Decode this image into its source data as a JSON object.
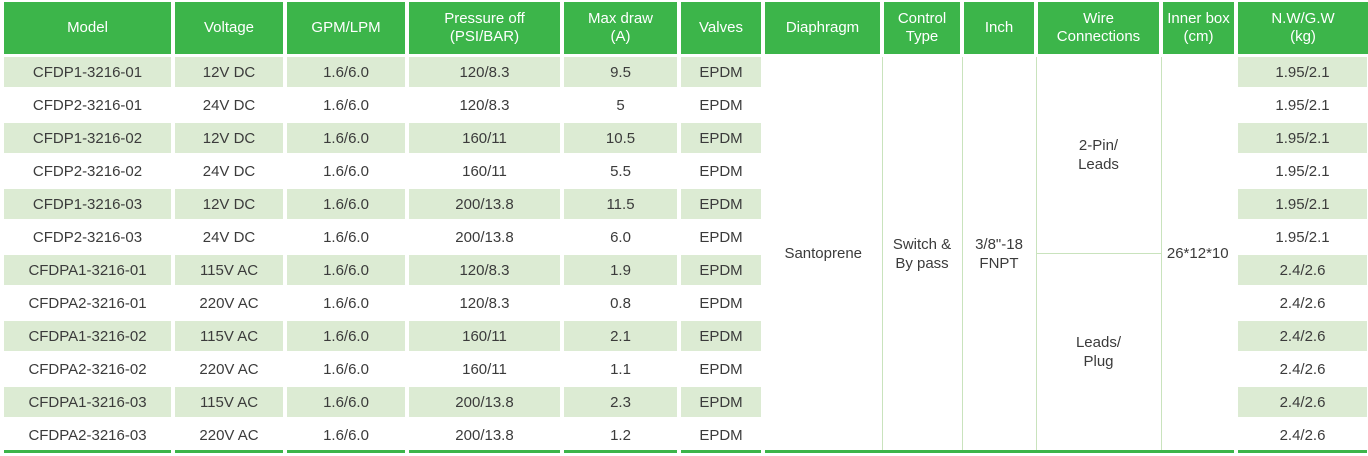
{
  "table": {
    "headers": [
      "Model",
      "Voltage",
      "GPM/LPM",
      "Pressure off\n(PSI/BAR)",
      "Max draw\n(A)",
      "Valves",
      "Diaphragm",
      "Control\nType",
      "Inch",
      "Wire\nConnections",
      "Inner box\n(cm)",
      "N.W/G.W\n(kg)"
    ],
    "rows": [
      [
        "CFDP1-3216-01",
        "12V DC",
        "1.6/6.0",
        "120/8.3",
        "9.5",
        "EPDM",
        "1.95/2.1"
      ],
      [
        "CFDP2-3216-01",
        "24V DC",
        "1.6/6.0",
        "120/8.3",
        "5",
        "EPDM",
        "1.95/2.1"
      ],
      [
        "CFDP1-3216-02",
        "12V DC",
        "1.6/6.0",
        "160/11",
        "10.5",
        "EPDM",
        "1.95/2.1"
      ],
      [
        "CFDP2-3216-02",
        "24V DC",
        "1.6/6.0",
        "160/11",
        "5.5",
        "EPDM",
        "1.95/2.1"
      ],
      [
        "CFDP1-3216-03",
        "12V DC",
        "1.6/6.0",
        "200/13.8",
        "11.5",
        "EPDM",
        "1.95/2.1"
      ],
      [
        "CFDP2-3216-03",
        "24V DC",
        "1.6/6.0",
        "200/13.8",
        "6.0",
        "EPDM",
        "1.95/2.1"
      ],
      [
        "CFDPA1-3216-01",
        "115V AC",
        "1.6/6.0",
        "120/8.3",
        "1.9",
        "EPDM",
        "2.4/2.6"
      ],
      [
        "CFDPA2-3216-01",
        "220V AC",
        "1.6/6.0",
        "120/8.3",
        "0.8",
        "EPDM",
        "2.4/2.6"
      ],
      [
        "CFDPA1-3216-02",
        "115V AC",
        "1.6/6.0",
        "160/11",
        "2.1",
        "EPDM",
        "2.4/2.6"
      ],
      [
        "CFDPA2-3216-02",
        "220V AC",
        "1.6/6.0",
        "160/11",
        "1.1",
        "EPDM",
        "2.4/2.6"
      ],
      [
        "CFDPA1-3216-03",
        "115V AC",
        "1.6/6.0",
        "200/13.8",
        "2.3",
        "EPDM",
        "2.4/2.6"
      ],
      [
        "CFDPA2-3216-03",
        "220V AC",
        "1.6/6.0",
        "200/13.8",
        "1.2",
        "EPDM",
        "2.4/2.6"
      ]
    ],
    "merged_cells": {
      "diaphragm": "Santoprene",
      "control_type": "Switch &\nBy pass",
      "inch": "3/8\"-18\nFNPT",
      "wire_connections_dc": "2-Pin/\nLeads",
      "wire_connections_ac": "Leads/\nPlug",
      "inner_box": "26*12*10"
    },
    "colors": {
      "header_bg": "#3CB54A",
      "header_text": "#FFFFFF",
      "row_stripe": "#DCEBD3",
      "row_plain": "#FFFFFF",
      "merged_cell_border": "#C9E3BD",
      "table_bottom_border": "#3CB54A",
      "body_text": "#3B3B3B"
    }
  }
}
